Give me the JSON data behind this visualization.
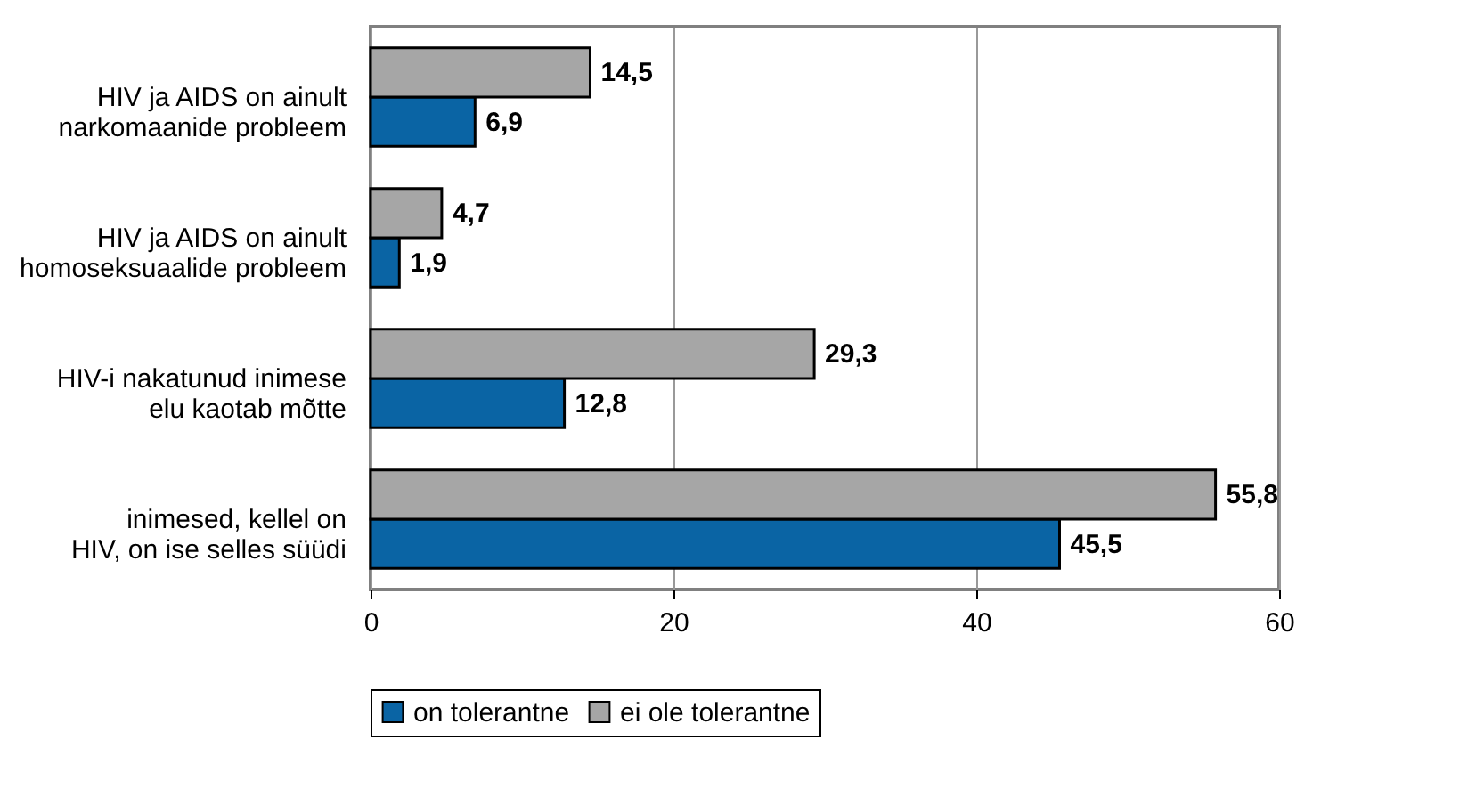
{
  "chart_data": {
    "type": "bar",
    "orientation": "horizontal",
    "categories": [
      "HIV ja AIDS on ainult narkomaanide probleem",
      "HIV ja AIDS on ainult homoseksuaalide probleem",
      "HIV-i nakatunud inimese elu kaotab mõtte",
      "inimesed, kellel on HIV, on ise selles süüdi"
    ],
    "series": [
      {
        "name": "on tolerantne",
        "color": "#0a64a4",
        "values": [
          6.9,
          1.9,
          12.8,
          45.5
        ],
        "value_labels": [
          "6,9",
          "1,9",
          "12,8",
          "45,5"
        ]
      },
      {
        "name": "ei ole tolerantne",
        "color": "#a6a6a6",
        "values": [
          14.5,
          4.7,
          29.3,
          55.8
        ],
        "value_labels": [
          "14,5",
          "4,7",
          "29,3",
          "55,8"
        ]
      }
    ],
    "xlim": [
      0,
      60
    ],
    "xticks": [
      0,
      20,
      40,
      60
    ],
    "grid": "x",
    "legend": "bottom"
  }
}
